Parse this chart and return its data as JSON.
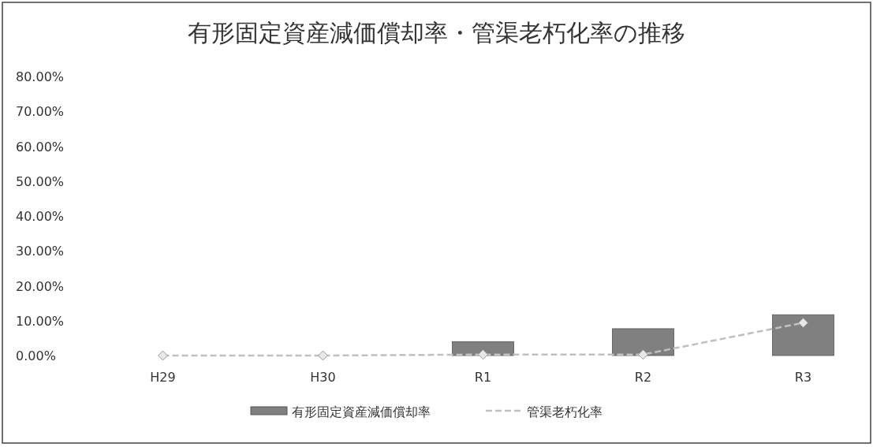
{
  "chart_data": {
    "type": "bar",
    "title": "有形固定資産減価償却率・管渠老朽化率の推移",
    "categories": [
      "H29",
      "H30",
      "R1",
      "R2",
      "R3"
    ],
    "series": [
      {
        "name": "有形固定資産減価償却率",
        "color": "#808080",
        "values": [
          0,
          0,
          4.0,
          7.7,
          11.7
        ]
      },
      {
        "name": "管渠老朽化率",
        "type": "line",
        "color": "#c0c0c0",
        "values": [
          0,
          0,
          0.3,
          0.3,
          9.4
        ]
      }
    ],
    "marker": "diamond",
    "line_style": "dashed",
    "ylim": [
      0,
      80
    ],
    "yticks": [
      {
        "value": 0,
        "label": "0.00%"
      },
      {
        "value": 10,
        "label": "10.00%"
      },
      {
        "value": 20,
        "label": "20.00%"
      },
      {
        "value": 30,
        "label": "30.00%"
      },
      {
        "value": 40,
        "label": "40.00%"
      },
      {
        "value": 50,
        "label": "50.00%"
      },
      {
        "value": 60,
        "label": "60.00%"
      },
      {
        "value": 70,
        "label": "70.00%"
      },
      {
        "value": 80,
        "label": "80.00%"
      }
    ],
    "grid": false,
    "legend": "bottom"
  }
}
